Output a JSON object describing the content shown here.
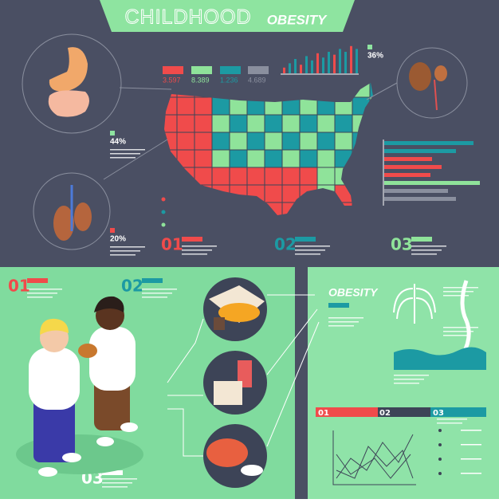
{
  "header": {
    "title_light": "CHILDHOOD",
    "title_bold": "OBESITY"
  },
  "map_legend": [
    "3.597",
    "8.389",
    "1.236",
    "4.689"
  ],
  "stats": {
    "kidney": "36%",
    "stomach": "44%",
    "lungs": "20%"
  },
  "top_steps": [
    "01",
    "02",
    "03"
  ],
  "bottom_steps": [
    "01",
    "02",
    "03"
  ],
  "panel": {
    "title": "OBESITY",
    "steps": [
      "01",
      "02",
      "03"
    ]
  }
}
